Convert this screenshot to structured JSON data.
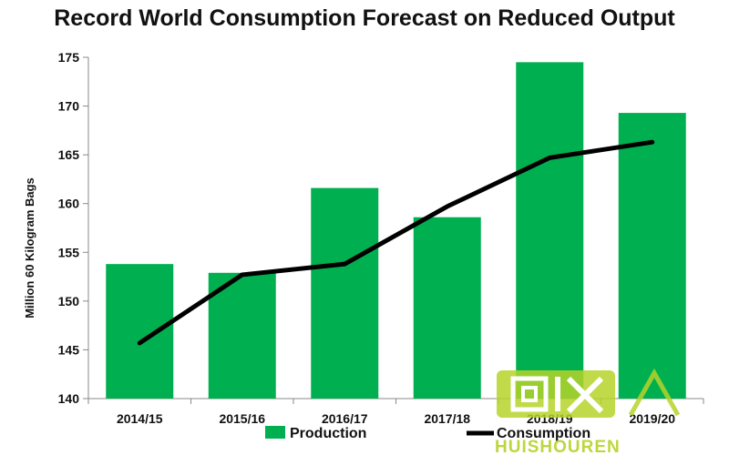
{
  "chart_data": {
    "type": "bar",
    "title": "Record World Consumption Forecast on Reduced Output",
    "xlabel": "",
    "ylabel": "Million 60 Kilogram Bags",
    "categories": [
      "2014/15",
      "2015/16",
      "2016/17",
      "2017/18",
      "2018/19",
      "2019/20"
    ],
    "ylim": [
      140,
      175
    ],
    "yticks": [
      140,
      145,
      150,
      155,
      160,
      165,
      170,
      175
    ],
    "grid": false,
    "legend": "bottom",
    "series": [
      {
        "name": "Production",
        "type": "bar",
        "color": "#00b050",
        "values": [
          153.8,
          152.9,
          161.6,
          158.6,
          174.5,
          169.3
        ]
      },
      {
        "name": "Consumption",
        "type": "line",
        "color": "#000000",
        "values": [
          145.7,
          152.7,
          153.8,
          159.7,
          164.7,
          166.3
        ]
      }
    ]
  },
  "watermark": {
    "text": "HUISHOUREN",
    "color": "#b5d32a"
  }
}
